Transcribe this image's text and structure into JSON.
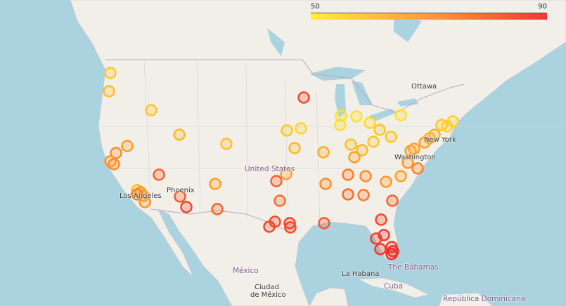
{
  "legend": {
    "min": "50",
    "max": "90",
    "colors": [
      "#ffee33",
      "#ff9a3a",
      "#f53636"
    ]
  },
  "colors": {
    "ocean": "#aad3df",
    "land": "#f2efe9",
    "border": "#b9a8c0"
  },
  "labels": {
    "ottawa": "Ottawa",
    "new_york": "New York",
    "washington": "Washington",
    "united_states": "United States",
    "phoenix": "Phoenix",
    "los_angeles": "Los Angeles",
    "mexico": "México",
    "ciudad_de_mexico_1": "Ciudad",
    "ciudad_de_mexico_2": "de México",
    "la_habana": "La Habana",
    "bahamas": "The Bahamas",
    "cuba": "Cuba",
    "republica_dominicana": "República Dominicana"
  },
  "markers": [
    58,
    60,
    58,
    62,
    68,
    72,
    70,
    72,
    80,
    60,
    70,
    68,
    75,
    70,
    82,
    85,
    68,
    80,
    60,
    85,
    58,
    55,
    62,
    68,
    80,
    78,
    84,
    85,
    86,
    85,
    82,
    72,
    65,
    52,
    52,
    52,
    54,
    58,
    52,
    58,
    60,
    62,
    58,
    68,
    75,
    72,
    78,
    76,
    70,
    68,
    80,
    68,
    70,
    74,
    66,
    68,
    64,
    64,
    58,
    56,
    56,
    85,
    88,
    87,
    88,
    88,
    90,
    90
  ]
}
